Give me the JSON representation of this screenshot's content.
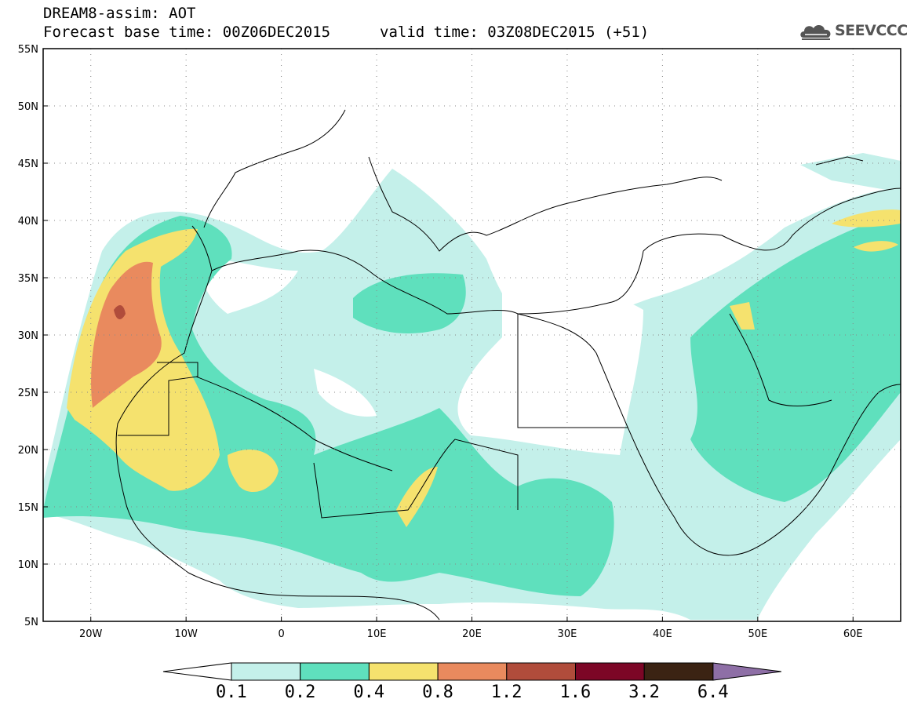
{
  "title": {
    "line1": "DREAM8-assim: AOT",
    "line2_left": "Forecast base time: 00Z06DEC2015",
    "line2_right": "valid time: 03Z08DEC2015 (+51)"
  },
  "logo": {
    "text": "SEEVCCC",
    "icon": "cloud-icon"
  },
  "map": {
    "lon_range": [
      -25,
      65
    ],
    "lat_range": [
      5,
      55
    ],
    "lat_tick_labels": [
      "5N",
      "10N",
      "15N",
      "20N",
      "25N",
      "30N",
      "35N",
      "40N",
      "45N",
      "50N",
      "55N"
    ],
    "lon_tick_labels": [
      "20W",
      "10W",
      "0",
      "10E",
      "20E",
      "30E",
      "40E",
      "50E",
      "60E"
    ],
    "grid": "dotted"
  },
  "colorbar": {
    "labels": [
      "0.1",
      "0.2",
      "0.4",
      "0.8",
      "1.2",
      "1.6",
      "3.2",
      "6.4"
    ],
    "colors": [
      "#ffffff",
      "#c4f0ea",
      "#5fe0bd",
      "#f5e26e",
      "#e98a5e",
      "#b04c3b",
      "#7c0626",
      "#3b2313",
      "#8e6fa6"
    ]
  }
}
